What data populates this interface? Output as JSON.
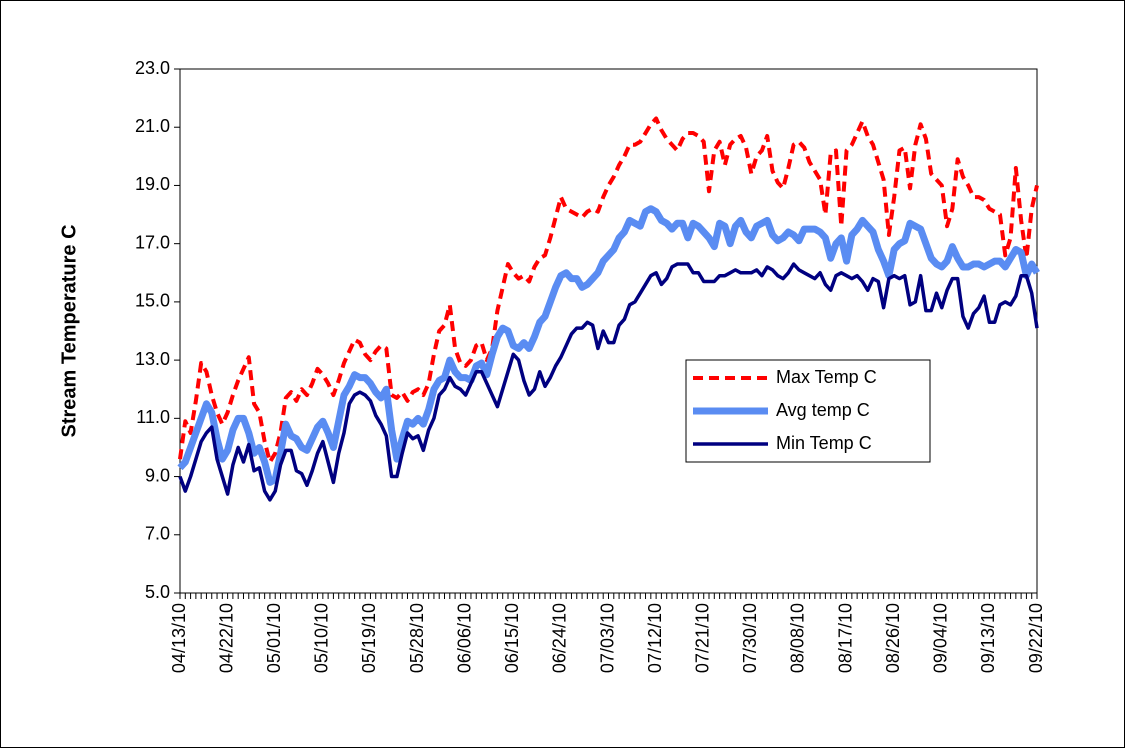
{
  "chart_data": {
    "type": "line",
    "y_label": "Stream Temperature C",
    "categories": [
      "04/13/10",
      null,
      null,
      null,
      null,
      null,
      null,
      null,
      null,
      "04/22/10",
      null,
      null,
      null,
      null,
      null,
      null,
      null,
      null,
      "05/01/10",
      null,
      null,
      null,
      null,
      null,
      null,
      null,
      null,
      "05/10/10",
      null,
      null,
      null,
      null,
      null,
      null,
      null,
      null,
      "05/19/10",
      null,
      null,
      null,
      null,
      null,
      null,
      null,
      null,
      "05/28/10",
      null,
      null,
      null,
      null,
      null,
      null,
      null,
      null,
      "06/06/10",
      null,
      null,
      null,
      null,
      null,
      null,
      null,
      null,
      "06/15/10",
      null,
      null,
      null,
      null,
      null,
      null,
      null,
      null,
      "06/24/10",
      null,
      null,
      null,
      null,
      null,
      null,
      null,
      null,
      "07/03/10",
      null,
      null,
      null,
      null,
      null,
      null,
      null,
      null,
      "07/12/10",
      null,
      null,
      null,
      null,
      null,
      null,
      null,
      null,
      "07/21/10",
      null,
      null,
      null,
      null,
      null,
      null,
      null,
      null,
      "07/30/10",
      null,
      null,
      null,
      null,
      null,
      null,
      null,
      null,
      "08/08/10",
      null,
      null,
      null,
      null,
      null,
      null,
      null,
      null,
      "08/17/10",
      null,
      null,
      null,
      null,
      null,
      null,
      null,
      null,
      "08/26/10",
      null,
      null,
      null,
      null,
      null,
      null,
      null,
      null,
      "09/04/10",
      null,
      null,
      null,
      null,
      null,
      null,
      null,
      null,
      "09/13/10",
      null,
      null,
      null,
      null,
      null,
      null,
      null,
      null,
      "09/22/10"
    ],
    "series": [
      {
        "name": "Max Temp C",
        "color": "#ff0000",
        "style": "dashed",
        "values": [
          9.6,
          10.9,
          10.5,
          11.6,
          12.9,
          12.6,
          11.8,
          11.2,
          10.8,
          11.2,
          11.8,
          12.3,
          12.7,
          13.1,
          11.5,
          11.2,
          10.2,
          9.5,
          9.8,
          10.5,
          11.7,
          11.9,
          11.6,
          12.0,
          11.8,
          12.2,
          12.7,
          12.5,
          12.2,
          11.8,
          12.3,
          12.9,
          13.3,
          13.7,
          13.6,
          13.2,
          13.0,
          13.3,
          13.5,
          13.4,
          11.8,
          11.7,
          11.9,
          11.6,
          11.9,
          12.0,
          11.8,
          12.2,
          13.2,
          14.0,
          14.2,
          14.9,
          13.4,
          12.9,
          12.8,
          13.0,
          13.5,
          13.6,
          13.0,
          13.4,
          14.7,
          15.5,
          16.3,
          16.0,
          15.8,
          15.9,
          15.7,
          16.2,
          16.5,
          16.6,
          17.2,
          17.9,
          18.6,
          18.2,
          18.1,
          18.0,
          17.9,
          18.1,
          18.2,
          18.1,
          18.6,
          19.0,
          19.3,
          19.7,
          20.0,
          20.4,
          20.4,
          20.5,
          20.8,
          21.1,
          21.3,
          20.9,
          20.6,
          20.4,
          20.2,
          20.6,
          20.8,
          20.8,
          20.7,
          20.5,
          18.8,
          20.2,
          20.5,
          19.7,
          20.4,
          20.6,
          20.7,
          20.3,
          19.4,
          20.0,
          20.2,
          20.7,
          19.5,
          19.1,
          18.9,
          19.6,
          20.4,
          20.5,
          20.3,
          19.8,
          19.5,
          19.2,
          18.0,
          20.1,
          20.2,
          17.6,
          20.2,
          20.4,
          20.8,
          21.2,
          20.7,
          20.4,
          19.8,
          19.2,
          17.3,
          18.6,
          20.2,
          20.3,
          18.9,
          20.4,
          21.1,
          20.6,
          19.4,
          19.2,
          19.0,
          17.6,
          18.2,
          19.9,
          19.3,
          19.0,
          18.6,
          18.6,
          18.5,
          18.2,
          18.1,
          18.0,
          16.6,
          17.2,
          19.6,
          17.8,
          16.5,
          18.2,
          19.0
        ]
      },
      {
        "name": "Avg temp C",
        "color": "#5a8cf2",
        "style": "thick",
        "values": [
          9.3,
          9.5,
          10.0,
          10.5,
          11.0,
          11.5,
          11.2,
          10.3,
          9.6,
          9.9,
          10.6,
          11.0,
          11.0,
          10.5,
          9.8,
          10.0,
          9.5,
          8.8,
          8.9,
          9.8,
          10.8,
          10.4,
          10.3,
          10.0,
          9.9,
          10.3,
          10.7,
          10.9,
          10.5,
          10.0,
          10.9,
          11.8,
          12.1,
          12.5,
          12.4,
          12.4,
          12.2,
          11.9,
          11.7,
          12.0,
          10.6,
          9.6,
          10.3,
          10.9,
          10.8,
          11.0,
          10.8,
          11.3,
          12.0,
          12.3,
          12.4,
          13.0,
          12.6,
          12.4,
          12.4,
          12.3,
          12.8,
          12.9,
          12.5,
          13.2,
          13.8,
          14.1,
          14.0,
          13.5,
          13.4,
          13.6,
          13.4,
          13.8,
          14.3,
          14.5,
          15.0,
          15.5,
          15.9,
          16.0,
          15.8,
          15.8,
          15.5,
          15.6,
          15.8,
          16.0,
          16.4,
          16.6,
          16.8,
          17.2,
          17.4,
          17.8,
          17.7,
          17.6,
          18.1,
          18.2,
          18.1,
          17.8,
          17.7,
          17.5,
          17.7,
          17.7,
          17.2,
          17.7,
          17.6,
          17.4,
          17.2,
          16.9,
          17.7,
          17.6,
          17.0,
          17.6,
          17.8,
          17.4,
          17.2,
          17.6,
          17.7,
          17.8,
          17.3,
          17.1,
          17.2,
          17.4,
          17.3,
          17.1,
          17.5,
          17.5,
          17.5,
          17.4,
          17.2,
          16.5,
          17.0,
          17.2,
          16.4,
          17.3,
          17.5,
          17.8,
          17.6,
          17.4,
          16.8,
          16.4,
          15.9,
          16.8,
          17.0,
          17.1,
          17.7,
          17.6,
          17.5,
          17.0,
          16.5,
          16.3,
          16.2,
          16.4,
          16.9,
          16.5,
          16.2,
          16.2,
          16.3,
          16.3,
          16.2,
          16.3,
          16.4,
          16.4,
          16.2,
          16.5,
          16.8,
          16.7,
          15.9,
          16.3,
          16.0
        ]
      },
      {
        "name": "Min Temp C",
        "color": "#000080",
        "style": "solid",
        "values": [
          9.0,
          8.5,
          9.0,
          9.6,
          10.2,
          10.5,
          10.7,
          9.6,
          9.0,
          8.4,
          9.4,
          10.0,
          9.5,
          10.1,
          9.2,
          9.3,
          8.5,
          8.2,
          8.5,
          9.4,
          9.9,
          9.9,
          9.2,
          9.1,
          8.7,
          9.2,
          9.8,
          10.2,
          9.5,
          8.8,
          9.8,
          10.5,
          11.5,
          11.8,
          11.9,
          11.8,
          11.6,
          11.1,
          10.8,
          10.4,
          9.0,
          9.0,
          9.8,
          10.5,
          10.3,
          10.4,
          9.9,
          10.6,
          11.0,
          11.8,
          12.0,
          12.4,
          12.1,
          12.0,
          11.8,
          12.2,
          12.6,
          12.6,
          12.2,
          11.8,
          11.4,
          12.0,
          12.6,
          13.2,
          13.0,
          12.3,
          11.8,
          12.0,
          12.6,
          12.1,
          12.4,
          12.8,
          13.1,
          13.5,
          13.9,
          14.1,
          14.1,
          14.3,
          14.2,
          13.4,
          14.0,
          13.6,
          13.6,
          14.2,
          14.4,
          14.9,
          15.0,
          15.3,
          15.6,
          15.9,
          16.0,
          15.6,
          15.8,
          16.2,
          16.3,
          16.3,
          16.3,
          16.0,
          16.0,
          15.7,
          15.7,
          15.7,
          15.9,
          15.9,
          16.0,
          16.1,
          16.0,
          16.0,
          16.0,
          16.1,
          15.9,
          16.2,
          16.1,
          15.9,
          15.8,
          16.0,
          16.3,
          16.1,
          16.0,
          15.9,
          15.8,
          16.0,
          15.6,
          15.4,
          15.9,
          16.0,
          15.9,
          15.8,
          15.9,
          15.7,
          15.4,
          15.8,
          15.7,
          14.8,
          15.8,
          15.9,
          15.8,
          15.9,
          14.9,
          15.0,
          15.9,
          14.7,
          14.7,
          15.3,
          14.8,
          15.4,
          15.8,
          15.8,
          14.5,
          14.1,
          14.6,
          14.8,
          15.2,
          14.3,
          14.3,
          14.9,
          15.0,
          14.9,
          15.2,
          15.9,
          15.9,
          15.3,
          14.1
        ]
      }
    ],
    "ylim": [
      5,
      23
    ],
    "yticks": [
      {
        "value": 5,
        "label": "5.0"
      },
      {
        "value": 7,
        "label": "7.0"
      },
      {
        "value": 9,
        "label": "9.0"
      },
      {
        "value": 11,
        "label": "11.0"
      },
      {
        "value": 13,
        "label": "13.0"
      },
      {
        "value": 15,
        "label": "15.0"
      },
      {
        "value": 17,
        "label": "17.0"
      },
      {
        "value": 19,
        "label": "19.0"
      },
      {
        "value": 21,
        "label": "21.0"
      },
      {
        "value": 23,
        "label": "23.0"
      }
    ],
    "grid": false,
    "legend": "center-right"
  }
}
